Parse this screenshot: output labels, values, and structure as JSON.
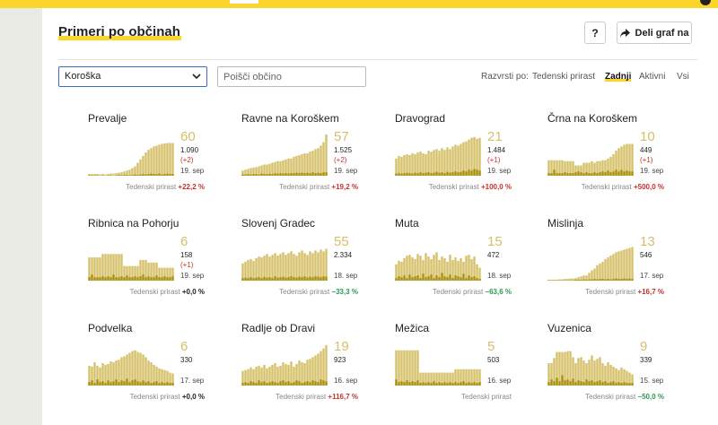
{
  "header": {
    "title": "Primeri po občinah",
    "help_label": "?",
    "share_label": "Deli graf na"
  },
  "filters": {
    "region_selected": "Koroška",
    "search_placeholder": "Poišči občino",
    "sort_label": "Razvrsti po:",
    "sort_options": [
      {
        "label": "Tedenski prirast",
        "active": false
      },
      {
        "label": "Zadnji",
        "active": true
      },
      {
        "label": "Aktivni",
        "active": false
      },
      {
        "label": "Vsi",
        "active": false
      }
    ]
  },
  "colors": {
    "accent": "#fbd52a",
    "bar_light": "#d6c06a",
    "bar_dark": "#a8900e",
    "up": "#c9302c",
    "down": "#2e9a55"
  },
  "growth_label": "Tedenski prirast",
  "towns": [
    {
      "name": "Prevalje",
      "current": "60",
      "total": "1.090",
      "diff": "(+2)",
      "date": "19. sep",
      "growth": "+22,2 %",
      "trend": "up",
      "bars": [
        4,
        4,
        4,
        4,
        3,
        4,
        3,
        4,
        5,
        5,
        6,
        7,
        8,
        10,
        12,
        14,
        18,
        22,
        30,
        38,
        46,
        54,
        60,
        64,
        68,
        70,
        72,
        74,
        75,
        76,
        76,
        76
      ],
      "dark": [
        1,
        1,
        1,
        1,
        0,
        1,
        0,
        1,
        1,
        0,
        1,
        2,
        1,
        2,
        2,
        1,
        2,
        3,
        2,
        3,
        4,
        3,
        4,
        5,
        4,
        4,
        5,
        3,
        4,
        5,
        4,
        4
      ]
    },
    {
      "name": "Ravne na Koroškem",
      "current": "57",
      "total": "1.525",
      "diff": "(+2)",
      "date": "19. sep",
      "growth": "+19,2 %",
      "trend": "up",
      "bars": [
        12,
        14,
        16,
        18,
        19,
        20,
        22,
        24,
        26,
        26,
        28,
        30,
        32,
        34,
        34,
        36,
        38,
        40,
        40,
        44,
        46,
        48,
        50,
        52,
        52,
        56,
        58,
        62,
        64,
        70,
        78,
        96
      ],
      "dark": [
        3,
        3,
        4,
        3,
        4,
        4,
        3,
        5,
        4,
        4,
        5,
        4,
        6,
        5,
        6,
        5,
        6,
        5,
        6,
        6,
        7,
        6,
        7,
        6,
        7,
        6,
        8,
        6,
        7,
        6,
        8,
        8
      ]
    },
    {
      "name": "Dravograd",
      "current": "21",
      "total": "1.484",
      "diff": "(+1)",
      "date": "19. sep",
      "growth": "+100,0 %",
      "trend": "up",
      "bars": [
        40,
        46,
        44,
        48,
        50,
        48,
        52,
        50,
        54,
        56,
        52,
        50,
        58,
        56,
        60,
        62,
        58,
        64,
        60,
        66,
        62,
        68,
        72,
        70,
        74,
        78,
        80,
        84,
        88,
        90,
        86,
        88
      ],
      "dark": [
        5,
        6,
        5,
        6,
        7,
        6,
        5,
        7,
        6,
        8,
        6,
        7,
        8,
        6,
        7,
        9,
        7,
        8,
        6,
        9,
        7,
        8,
        10,
        8,
        9,
        12,
        10,
        14,
        12,
        16,
        14,
        12
      ]
    },
    {
      "name": "Črna na Koroškem",
      "current": "10",
      "total": "449",
      "diff": "(+1)",
      "date": "19. sep",
      "growth": "+500,0 %",
      "trend": "up",
      "bars": [
        36,
        36,
        36,
        36,
        36,
        36,
        34,
        34,
        34,
        34,
        24,
        24,
        24,
        30,
        30,
        30,
        34,
        30,
        34,
        34,
        36,
        36,
        40,
        44,
        50,
        58,
        64,
        68,
        72,
        74,
        74,
        74
      ],
      "dark": [
        6,
        6,
        14,
        6,
        6,
        6,
        8,
        6,
        6,
        6,
        8,
        10,
        8,
        6,
        8,
        6,
        6,
        8,
        6,
        8,
        10,
        8,
        12,
        8,
        10,
        14,
        10,
        14,
        10,
        12,
        10,
        10
      ]
    },
    {
      "name": "Ribnica na Pohorju",
      "current": "6",
      "total": "158",
      "diff": "(+1)",
      "date": "19. sep",
      "growth": "+0,0 %",
      "trend": "zero",
      "bars": [
        54,
        54,
        54,
        54,
        54,
        62,
        62,
        62,
        62,
        62,
        62,
        62,
        62,
        34,
        34,
        34,
        34,
        34,
        34,
        48,
        48,
        48,
        42,
        42,
        42,
        42,
        30,
        30,
        30,
        30,
        30,
        30
      ],
      "dark": [
        8,
        14,
        8,
        8,
        8,
        10,
        8,
        10,
        8,
        14,
        8,
        8,
        10,
        8,
        12,
        8,
        8,
        10,
        8,
        10,
        14,
        8,
        10,
        8,
        8,
        12,
        8,
        8,
        10,
        8,
        8,
        10
      ]
    },
    {
      "name": "Slovenj Gradec",
      "current": "55",
      "total": "2.334",
      "diff": "",
      "date": "18. sep",
      "growth": "−33,3 %",
      "trend": "down",
      "bars": [
        40,
        44,
        48,
        50,
        46,
        52,
        56,
        54,
        58,
        62,
        56,
        60,
        64,
        58,
        62,
        66,
        60,
        64,
        68,
        62,
        58,
        66,
        70,
        64,
        60,
        68,
        64,
        70,
        66,
        72,
        68,
        74
      ],
      "dark": [
        6,
        7,
        6,
        8,
        6,
        7,
        8,
        6,
        9,
        7,
        8,
        6,
        10,
        7,
        8,
        9,
        7,
        8,
        10,
        8,
        7,
        9,
        8,
        10,
        7,
        9,
        8,
        10,
        9,
        8,
        10,
        9
      ]
    },
    {
      "name": "Muta",
      "current": "15",
      "total": "472",
      "diff": "",
      "date": "18. sep",
      "growth": "−63,6 %",
      "trend": "down",
      "bars": [
        38,
        46,
        44,
        52,
        58,
        60,
        54,
        50,
        62,
        58,
        48,
        64,
        56,
        50,
        60,
        66,
        48,
        56,
        52,
        44,
        60,
        48,
        54,
        46,
        52,
        44,
        58,
        60,
        50,
        56,
        38,
        30
      ],
      "dark": [
        6,
        10,
        8,
        12,
        6,
        14,
        8,
        10,
        12,
        6,
        16,
        8,
        10,
        14,
        6,
        12,
        8,
        18,
        10,
        8,
        14,
        6,
        12,
        10,
        8,
        16,
        6,
        12,
        8,
        10,
        6,
        4
      ]
    },
    {
      "name": "Mislinja",
      "current": "13",
      "total": "546",
      "diff": "",
      "date": "17. sep",
      "growth": "+16,7 %",
      "trend": "up",
      "bars": [
        2,
        2,
        2,
        2,
        3,
        3,
        4,
        4,
        5,
        5,
        6,
        8,
        10,
        12,
        12,
        18,
        24,
        28,
        36,
        40,
        44,
        50,
        54,
        58,
        62,
        66,
        68,
        70,
        72,
        74,
        76,
        78
      ],
      "dark": [
        1,
        1,
        1,
        1,
        1,
        1,
        1,
        1,
        1,
        1,
        2,
        2,
        2,
        3,
        2,
        3,
        3,
        4,
        3,
        4,
        4,
        3,
        4,
        3,
        4,
        5,
        4,
        4,
        5,
        4,
        5,
        4
      ]
    },
    {
      "name": "Podvelka",
      "current": "6",
      "total": "330",
      "diff": "",
      "date": "17. sep",
      "growth": "+0,0 %",
      "trend": "zero",
      "bars": [
        46,
        44,
        54,
        46,
        42,
        52,
        48,
        50,
        56,
        54,
        58,
        60,
        66,
        68,
        72,
        76,
        80,
        82,
        78,
        76,
        72,
        66,
        58,
        54,
        48,
        44,
        40,
        38,
        36,
        34,
        30,
        28
      ],
      "dark": [
        8,
        12,
        6,
        14,
        8,
        10,
        6,
        12,
        8,
        10,
        14,
        8,
        12,
        10,
        16,
        8,
        12,
        14,
        10,
        8,
        12,
        8,
        10,
        6,
        8,
        10,
        6,
        8,
        6,
        8,
        6,
        6
      ]
    },
    {
      "name": "Radlje ob Dravi",
      "current": "19",
      "total": "923",
      "diff": "",
      "date": "16. sep",
      "growth": "+116,7 %",
      "trend": "up",
      "bars": [
        34,
        36,
        38,
        42,
        38,
        44,
        46,
        42,
        48,
        40,
        44,
        48,
        52,
        44,
        46,
        54,
        50,
        48,
        56,
        44,
        50,
        58,
        54,
        52,
        60,
        62,
        66,
        70,
        74,
        80,
        86,
        94
      ],
      "dark": [
        6,
        8,
        6,
        10,
        8,
        6,
        12,
        8,
        10,
        6,
        8,
        10,
        8,
        6,
        10,
        12,
        8,
        10,
        6,
        8,
        12,
        10,
        6,
        8,
        10,
        8,
        12,
        10,
        8,
        14,
        12,
        10
      ]
    },
    {
      "name": "Mežica",
      "current": "5",
      "total": "503",
      "diff": "",
      "date": "16. sep",
      "growth": "",
      "trend": "zero",
      "bars": [
        82,
        82,
        82,
        82,
        82,
        82,
        82,
        82,
        82,
        30,
        30,
        30,
        30,
        30,
        30,
        30,
        30,
        30,
        30,
        30,
        30,
        30,
        38,
        38,
        38,
        38,
        38,
        38,
        38,
        38,
        38,
        38
      ],
      "dark": [
        14,
        8,
        10,
        8,
        12,
        8,
        10,
        8,
        12,
        6,
        8,
        6,
        8,
        6,
        10,
        6,
        8,
        6,
        8,
        6,
        8,
        6,
        8,
        6,
        8,
        10,
        6,
        8,
        6,
        8,
        6,
        8
      ]
    },
    {
      "name": "Vuzenica",
      "current": "9",
      "total": "339",
      "diff": "",
      "date": "15. sep",
      "growth": "−50,0 %",
      "trend": "down",
      "bars": [
        52,
        52,
        64,
        78,
        78,
        78,
        78,
        80,
        80,
        66,
        52,
        64,
        66,
        58,
        52,
        60,
        70,
        58,
        62,
        66,
        52,
        46,
        54,
        48,
        44,
        40,
        36,
        42,
        38,
        34,
        30,
        26
      ],
      "dark": [
        8,
        14,
        10,
        18,
        10,
        24,
        12,
        14,
        10,
        16,
        8,
        12,
        10,
        8,
        14,
        10,
        12,
        8,
        10,
        12,
        8,
        10,
        6,
        8,
        10,
        6,
        8,
        6,
        8,
        6,
        6,
        6
      ]
    }
  ]
}
